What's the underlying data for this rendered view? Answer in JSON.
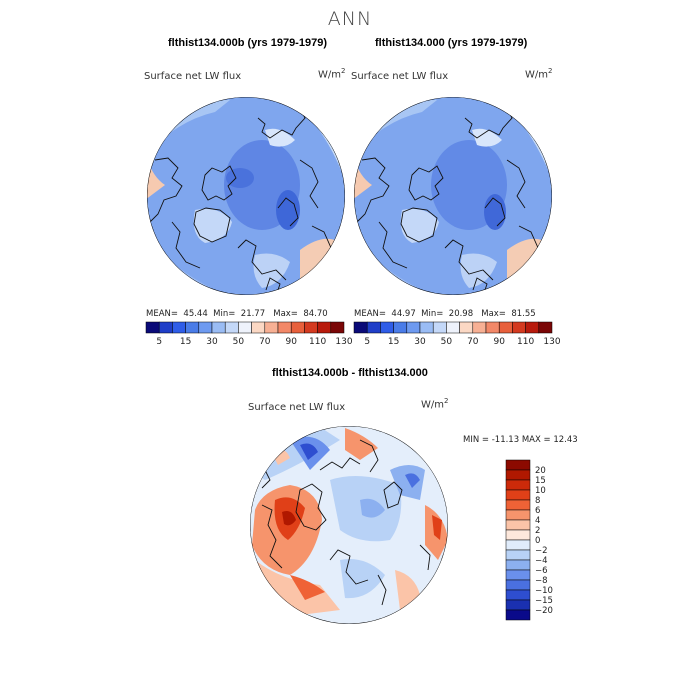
{
  "title": "ANN",
  "panels": [
    {
      "subtitle": "flthist134.000b (yrs 1979-1979)",
      "label": "Surface net LW flux",
      "units": "W/m",
      "units_sup": "2",
      "mean_label": "MEAN=",
      "mean": "45.44",
      "min_label": "Min=",
      "min": "21.77",
      "max_label": "Max=",
      "max": "84.70"
    },
    {
      "subtitle": "flthist134.000 (yrs 1979-1979)",
      "label": "Surface net LW flux",
      "units": "W/m",
      "units_sup": "2",
      "mean_label": "MEAN=",
      "mean": "44.97",
      "min_label": "Min=",
      "min": "20.98",
      "max_label": "Max=",
      "max": "81.55"
    }
  ],
  "top_colorbar": {
    "colors": [
      "#0a0a78",
      "#1f3ec8",
      "#2f5de8",
      "#4a7ce8",
      "#6e9af0",
      "#9abcf4",
      "#c4d8f8",
      "#eef2fb",
      "#fbd8c4",
      "#f7b094",
      "#f28868",
      "#e8603c",
      "#d43a20",
      "#b81a0c",
      "#7a0606"
    ],
    "labels": [
      "5",
      "15",
      "30",
      "50",
      "70",
      "90",
      "110",
      "130"
    ]
  },
  "diff": {
    "subtitle": "flthist134.000b - flthist134.000",
    "label": "Surface net LW flux",
    "units": "W/m",
    "units_sup": "2",
    "minmax": "MIN = -11.13 MAX =  12.43",
    "colors": [
      "#8c0a00",
      "#b01800",
      "#cc2a0a",
      "#e04018",
      "#ef6236",
      "#f6946c",
      "#fbc4a8",
      "#fde8dc",
      "#e0ecfb",
      "#b8d2f6",
      "#8cb0f0",
      "#6a90ec",
      "#4a70e0",
      "#2e4ed0",
      "#1a30b0",
      "#0a0a8a"
    ],
    "labels": [
      "20",
      "15",
      "10",
      "8",
      "6",
      "4",
      "2",
      "0",
      "−2",
      "−4",
      "−6",
      "−8",
      "−10",
      "−15",
      "−20"
    ]
  }
}
